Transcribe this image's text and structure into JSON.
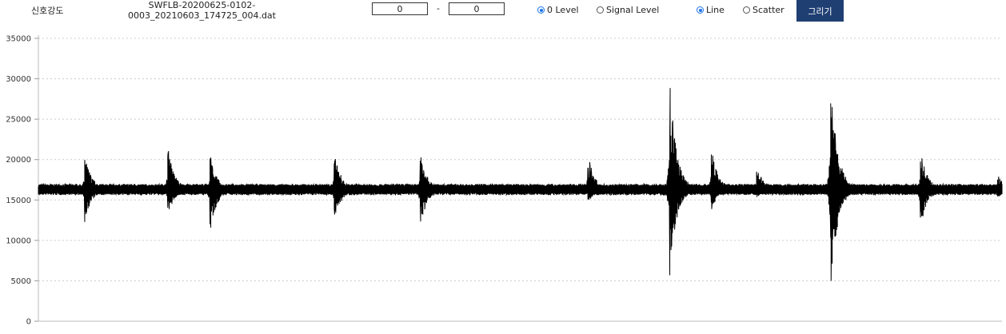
{
  "toolbar": {
    "title": "신호강도",
    "filename_line1": "SWFLB-20200625-0102-",
    "filename_line2": "0003_20210603_174725_004.dat",
    "range_from": "0",
    "range_to": "0",
    "range_separator": "-",
    "level_options": [
      {
        "label": "0 Level",
        "selected": true
      },
      {
        "label": "Signal Level",
        "selected": false
      }
    ],
    "mode_options": [
      {
        "label": "Line",
        "selected": true
      },
      {
        "label": "Scatter",
        "selected": false
      }
    ],
    "draw_button": "그리기"
  },
  "colors": {
    "accent": "#1f3f73",
    "radio_selected": "#1a73e8",
    "line": "#000000"
  },
  "chart_data": {
    "type": "line",
    "title": "",
    "xlabel": "",
    "ylabel": "",
    "ylim": [
      0,
      35000
    ],
    "yticks": [
      0,
      5000,
      10000,
      15000,
      20000,
      25000,
      30000,
      35000
    ],
    "grid": "horizontal-dotted",
    "legend": "none",
    "baseline": 16300,
    "baseline_noise": 600,
    "xrange": [
      0,
      1
    ],
    "bursts": [
      {
        "x": 0.048,
        "max": 20800,
        "min": 11900
      },
      {
        "x": 0.134,
        "max": 21900,
        "min": 12800
      },
      {
        "x": 0.178,
        "max": 20800,
        "min": 10900
      },
      {
        "x": 0.307,
        "max": 21200,
        "min": 12000
      },
      {
        "x": 0.396,
        "max": 21000,
        "min": 11300
      },
      {
        "x": 0.57,
        "max": 21000,
        "min": 14600
      },
      {
        "x": 0.655,
        "max": 30100,
        "min": 5300
      },
      {
        "x": 0.698,
        "max": 21800,
        "min": 13500
      },
      {
        "x": 0.745,
        "max": 19500,
        "min": 15200
      },
      {
        "x": 0.822,
        "max": 31100,
        "min": 3300
      },
      {
        "x": 0.915,
        "max": 21500,
        "min": 11100
      },
      {
        "x": 0.995,
        "max": 18300,
        "min": 15100
      }
    ]
  }
}
